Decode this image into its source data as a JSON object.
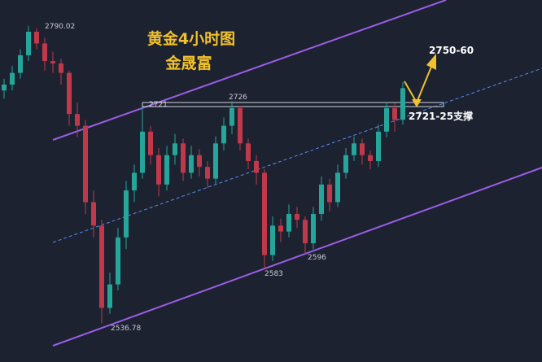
{
  "chart_data": {
    "type": "candlestick",
    "title": "黄金4小时图",
    "subtitle": "金晟富",
    "annotations": [
      "2790.02",
      "2721",
      "2726",
      "2583",
      "2596",
      "2536.78",
      "2750-60",
      "2721-25支撑"
    ],
    "up_color": "#26a69a",
    "down_color": "#c0394b",
    "ylim": [
      2504,
      2812
    ],
    "candles": [
      [
        2735,
        2745,
        2728,
        2740
      ],
      [
        2740,
        2756,
        2735,
        2750
      ],
      [
        2750,
        2770,
        2745,
        2765
      ],
      [
        2765,
        2790.02,
        2760,
        2785
      ],
      [
        2785,
        2788,
        2770,
        2775
      ],
      [
        2775,
        2780,
        2752,
        2760
      ],
      [
        2760,
        2768,
        2750,
        2758
      ],
      [
        2758,
        2762,
        2740,
        2750
      ],
      [
        2750,
        2752,
        2705,
        2715
      ],
      [
        2715,
        2725,
        2695,
        2705
      ],
      [
        2705,
        2710,
        2630,
        2640
      ],
      [
        2640,
        2650,
        2610,
        2620
      ],
      [
        2620,
        2625,
        2536.78,
        2550
      ],
      [
        2550,
        2580,
        2545,
        2570
      ],
      [
        2570,
        2618,
        2565,
        2610
      ],
      [
        2610,
        2658,
        2600,
        2650
      ],
      [
        2650,
        2672,
        2640,
        2665
      ],
      [
        2665,
        2721,
        2660,
        2700
      ],
      [
        2700,
        2705,
        2672,
        2680
      ],
      [
        2680,
        2686,
        2645,
        2655
      ],
      [
        2655,
        2688,
        2650,
        2680
      ],
      [
        2680,
        2698,
        2672,
        2690
      ],
      [
        2690,
        2694,
        2658,
        2665
      ],
      [
        2665,
        2688,
        2660,
        2680
      ],
      [
        2680,
        2685,
        2662,
        2670
      ],
      [
        2670,
        2675,
        2652,
        2660
      ],
      [
        2660,
        2696,
        2655,
        2690
      ],
      [
        2690,
        2712,
        2684,
        2705
      ],
      [
        2705,
        2726,
        2698,
        2720
      ],
      [
        2720,
        2722,
        2684,
        2690
      ],
      [
        2690,
        2694,
        2668,
        2675
      ],
      [
        2675,
        2680,
        2655,
        2665
      ],
      [
        2665,
        2668,
        2583,
        2595
      ],
      [
        2595,
        2628,
        2590,
        2620
      ],
      [
        2620,
        2626,
        2606,
        2615
      ],
      [
        2615,
        2638,
        2610,
        2630
      ],
      [
        2630,
        2636,
        2618,
        2625
      ],
      [
        2625,
        2628,
        2596,
        2605
      ],
      [
        2605,
        2636,
        2600,
        2630
      ],
      [
        2630,
        2662,
        2624,
        2655
      ],
      [
        2655,
        2660,
        2632,
        2640
      ],
      [
        2640,
        2672,
        2636,
        2665
      ],
      [
        2665,
        2686,
        2660,
        2680
      ],
      [
        2680,
        2696,
        2675,
        2690
      ],
      [
        2690,
        2694,
        2672,
        2680
      ],
      [
        2680,
        2684,
        2668,
        2675
      ],
      [
        2675,
        2706,
        2670,
        2700
      ],
      [
        2700,
        2725,
        2695,
        2720
      ],
      [
        2720,
        2724,
        2700,
        2710
      ],
      [
        2710,
        2742,
        2706,
        2737
      ]
    ]
  }
}
